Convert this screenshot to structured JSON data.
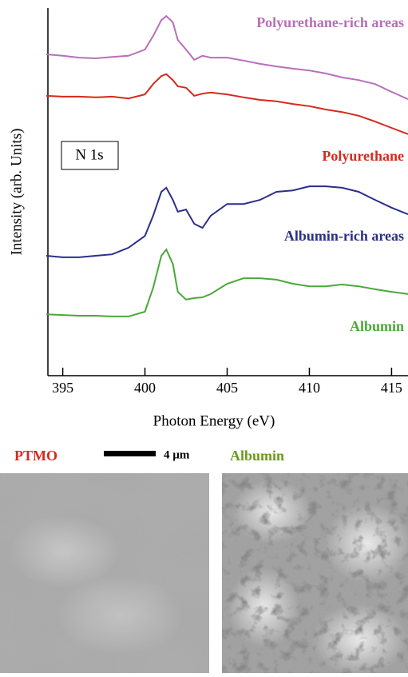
{
  "chart_data": {
    "type": "line",
    "xlabel": "Photon Energy (eV)",
    "ylabel": "Intensity (arb. Units)",
    "annotation": "N 1s",
    "x": [
      394,
      395,
      396,
      397,
      398,
      399,
      400,
      400.5,
      401,
      401.3,
      401.7,
      402,
      402.5,
      403,
      403.5,
      404,
      405,
      406,
      407,
      408,
      409,
      410,
      411,
      412,
      413,
      414,
      415,
      416
    ],
    "xlim": [
      394,
      416
    ],
    "xticks": [
      395,
      400,
      405,
      410,
      415
    ],
    "ylim": [
      0,
      100
    ],
    "series": [
      {
        "name": "Polyurethane-rich areas",
        "color": "#b86fb8",
        "values": [
          87.4,
          87.0,
          86.5,
          86.3,
          86.7,
          87.0,
          88.7,
          92.4,
          96.7,
          97.8,
          96.1,
          91.3,
          88.7,
          85.9,
          87.0,
          86.5,
          86.5,
          85.7,
          84.8,
          84.1,
          83.5,
          83.0,
          82.2,
          81.1,
          80.4,
          79.3,
          77.2,
          75.2
        ]
      },
      {
        "name": "Polyurethane",
        "color": "#d42a1e",
        "values": [
          76.1,
          75.9,
          75.9,
          75.7,
          75.9,
          75.4,
          76.5,
          79.3,
          81.5,
          82.0,
          80.4,
          78.7,
          78.3,
          76.1,
          76.7,
          77.0,
          76.5,
          75.7,
          75.0,
          74.6,
          73.9,
          73.3,
          72.4,
          71.7,
          70.7,
          69.1,
          67.4,
          65.7
        ]
      },
      {
        "name": "Albumin-rich areas",
        "color": "#2a2f8a",
        "values": [
          32.6,
          32.2,
          32.2,
          32.6,
          33.0,
          34.8,
          38.0,
          43.5,
          50.0,
          51.1,
          47.8,
          44.6,
          45.2,
          41.3,
          40.2,
          43.5,
          46.7,
          46.7,
          47.8,
          50.0,
          50.4,
          51.5,
          51.5,
          51.1,
          50.0,
          47.8,
          45.7,
          43.9
        ]
      },
      {
        "name": "Albumin",
        "color": "#4aa83a",
        "values": [
          16.7,
          16.5,
          16.3,
          16.3,
          16.1,
          16.1,
          17.4,
          23.9,
          32.6,
          34.3,
          30.4,
          22.8,
          20.7,
          21.1,
          21.3,
          22.2,
          25.0,
          26.5,
          26.5,
          26.1,
          25.0,
          24.3,
          24.3,
          24.8,
          24.3,
          23.5,
          22.8,
          22.2
        ]
      }
    ]
  },
  "micrographs": {
    "labels": [
      {
        "text": "PTMO",
        "color": "#d42a1e"
      },
      {
        "text": "Albumin",
        "color": "#6a9a1e"
      }
    ],
    "scale_bar": "4 µm"
  }
}
